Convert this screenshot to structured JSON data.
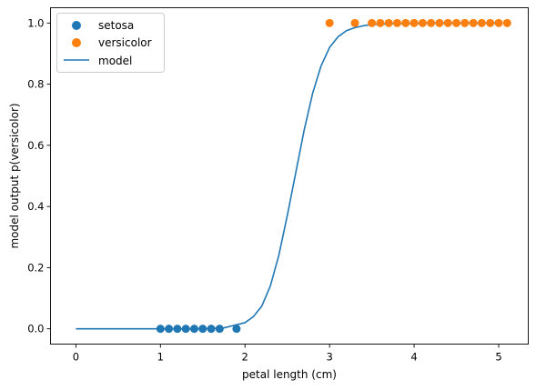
{
  "chart_data": {
    "type": "scatter",
    "title": "",
    "xlabel": "petal length (cm)",
    "ylabel": "model output p(versicolor)",
    "xlim": [
      -0.3,
      5.35
    ],
    "ylim": [
      -0.05,
      1.05
    ],
    "xticks": [
      0,
      1,
      2,
      3,
      4,
      5
    ],
    "yticks": [
      0.0,
      0.2,
      0.4,
      0.6,
      0.8,
      1.0
    ],
    "xtick_labels": [
      "0",
      "1",
      "2",
      "3",
      "4",
      "5"
    ],
    "ytick_labels": [
      "0.0",
      "0.2",
      "0.4",
      "0.6",
      "0.8",
      "1.0"
    ],
    "grid": false,
    "legend_position": "top-left",
    "series": [
      {
        "name": "setosa",
        "kind": "scatter",
        "color": "#1f77b4",
        "x": [
          1.0,
          1.1,
          1.2,
          1.3,
          1.4,
          1.5,
          1.6,
          1.7,
          1.9
        ],
        "y": [
          0,
          0,
          0,
          0,
          0,
          0,
          0,
          0,
          0
        ]
      },
      {
        "name": "versicolor",
        "kind": "scatter",
        "color": "#ff7f0e",
        "x": [
          3.0,
          3.3,
          3.5,
          3.6,
          3.7,
          3.8,
          3.9,
          4.0,
          4.1,
          4.2,
          4.3,
          4.4,
          4.5,
          4.6,
          4.7,
          4.8,
          4.9,
          5.0,
          5.1
        ],
        "y": [
          1,
          1,
          1,
          1,
          1,
          1,
          1,
          1,
          1,
          1,
          1,
          1,
          1,
          1,
          1,
          1,
          1,
          1,
          1
        ]
      },
      {
        "name": "model",
        "kind": "line",
        "color": "#1f77b4",
        "x": [
          0.0,
          0.25,
          0.5,
          0.75,
          1.0,
          1.25,
          1.5,
          1.75,
          2.0,
          2.1,
          2.2,
          2.3,
          2.4,
          2.5,
          2.6,
          2.7,
          2.8,
          2.9,
          3.0,
          3.1,
          3.2,
          3.3,
          3.4,
          3.5,
          3.75,
          4.0,
          4.25,
          4.5,
          4.75,
          5.0
        ],
        "y": [
          0.0,
          0.0,
          0.0,
          0.0,
          0.0,
          0.0,
          0.0,
          0.003,
          0.02,
          0.04,
          0.075,
          0.14,
          0.24,
          0.37,
          0.51,
          0.65,
          0.77,
          0.86,
          0.92,
          0.955,
          0.975,
          0.985,
          0.991,
          0.995,
          0.998,
          0.999,
          1.0,
          1.0,
          1.0,
          1.0
        ]
      }
    ]
  }
}
